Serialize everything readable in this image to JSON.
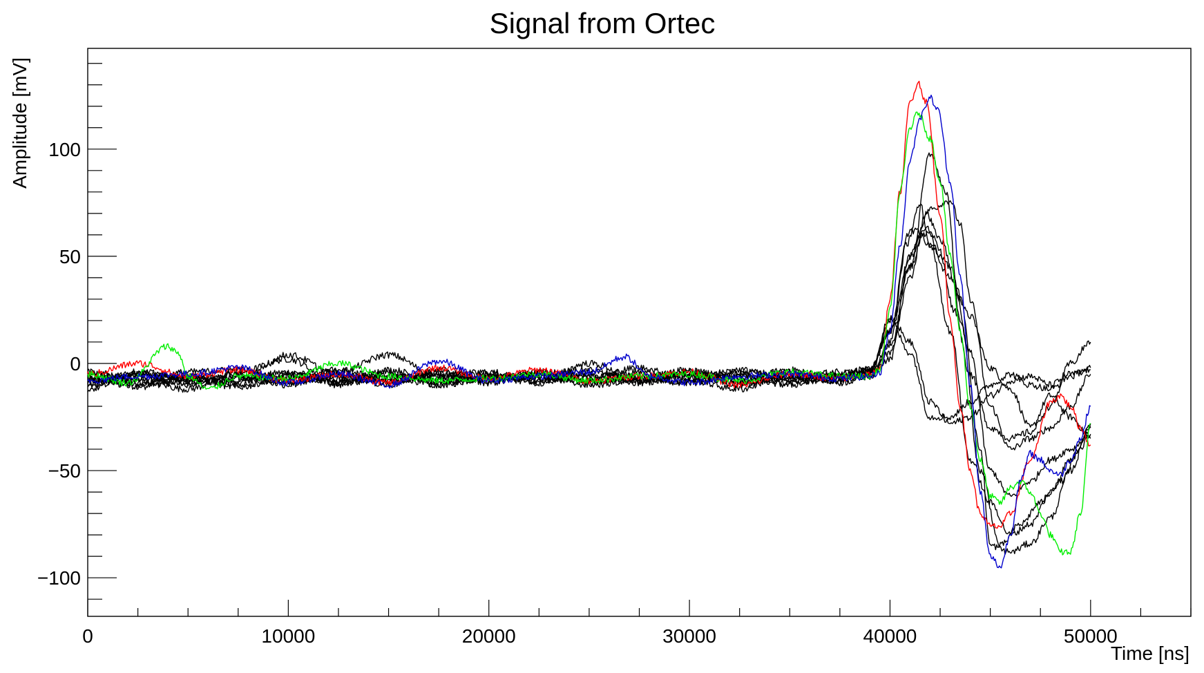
{
  "chart_data": {
    "type": "line",
    "title": "Signal from Ortec",
    "xlabel": "Time [ns]",
    "ylabel": "Amplitude [mV]",
    "xlim": [
      0,
      55000
    ],
    "ylim": [
      -118,
      147
    ],
    "x_ticks": [
      0,
      10000,
      20000,
      30000,
      40000,
      50000
    ],
    "y_ticks": [
      -100,
      -50,
      0,
      50,
      100
    ],
    "x_tick_labels": [
      "0",
      "10000",
      "20000",
      "30000",
      "40000",
      "50000"
    ],
    "y_tick_labels": [
      "−100",
      "−50",
      "0",
      "50",
      "100"
    ],
    "grid": false,
    "legend": "none",
    "colors": {
      "red": "#ff0000",
      "green": "#00ee00",
      "blue": "#0000cc",
      "black": "#000000"
    },
    "series": [
      {
        "color": "#000000",
        "x": [
          0,
          2500,
          5000,
          7500,
          10000,
          12500,
          15000,
          17500,
          20000,
          22500,
          25000,
          27500,
          30000,
          32500,
          35000,
          37500,
          39000,
          40000,
          41000,
          41500,
          42000,
          43000,
          44000,
          45000,
          46000,
          47000,
          48000,
          49000,
          50000
        ],
        "y": [
          -8,
          -10,
          -6,
          -8,
          -4,
          -9,
          -6,
          -10,
          -7,
          -5,
          -8,
          -6,
          -9,
          -5,
          -7,
          -6,
          -3,
          15,
          50,
          60,
          55,
          40,
          22,
          -2,
          -12,
          -30,
          -15,
          -25,
          -35
        ]
      },
      {
        "color": "#000000",
        "x": [
          0,
          2500,
          5000,
          7500,
          10000,
          12500,
          15000,
          17500,
          20000,
          22500,
          25000,
          27500,
          30000,
          32500,
          35000,
          37500,
          39000,
          40000,
          41000,
          42000,
          43000,
          43500,
          44000,
          45000,
          46000,
          47000,
          48000,
          49000,
          50000
        ],
        "y": [
          -5,
          -8,
          -12,
          -4,
          2,
          -10,
          -3,
          -8,
          -6,
          -9,
          -4,
          -7,
          -3,
          -10,
          -6,
          -8,
          -4,
          2,
          50,
          72,
          76,
          65,
          30,
          -20,
          -40,
          -35,
          -30,
          -20,
          -5
        ]
      },
      {
        "color": "#000000",
        "x": [
          0,
          2500,
          5000,
          7500,
          10000,
          12500,
          15000,
          17500,
          20000,
          22500,
          25000,
          27500,
          30000,
          32500,
          35000,
          37500,
          39000,
          40000,
          41000,
          42000,
          43000,
          44000,
          45000,
          46000,
          47000,
          48000,
          49000,
          50000
        ],
        "y": [
          -10,
          -5,
          -7,
          -11,
          -6,
          -4,
          4,
          -6,
          -8,
          -6,
          -3,
          -9,
          -5,
          -7,
          -10,
          -6,
          -2,
          15,
          62,
          60,
          45,
          5,
          -50,
          -62,
          -55,
          -45,
          -40,
          -33
        ]
      },
      {
        "color": "#000000",
        "x": [
          0,
          2500,
          5000,
          7500,
          10000,
          12500,
          15000,
          17500,
          20000,
          22500,
          25000,
          27500,
          30000,
          32500,
          35000,
          37500,
          39000,
          40000,
          40800,
          41500,
          42000,
          43000,
          44000,
          45000,
          46000,
          47000,
          48000,
          49000,
          50000
        ],
        "y": [
          -7,
          -9,
          -4,
          -3,
          -8,
          -6,
          -9,
          -4,
          -6,
          -8,
          0,
          -7,
          -9,
          -4,
          -5,
          -8,
          -5,
          10,
          55,
          74,
          55,
          15,
          -45,
          -65,
          -80,
          -75,
          -60,
          -45,
          -30
        ]
      },
      {
        "color": "#000000",
        "x": [
          0,
          2500,
          5000,
          7500,
          10000,
          12500,
          15000,
          17500,
          20000,
          22500,
          25000,
          27500,
          30000,
          32500,
          35000,
          37500,
          39000,
          40000,
          41000,
          41800,
          42500,
          43500,
          44500,
          45000,
          46000,
          47000,
          48000,
          49000,
          50000
        ],
        "y": [
          -12,
          -4,
          -7,
          -9,
          4,
          -5,
          -10,
          -3,
          -9,
          -4,
          -7,
          -2,
          -8,
          -12,
          -4,
          -6,
          -5,
          5,
          40,
          70,
          58,
          30,
          -40,
          -85,
          -88,
          -84,
          -72,
          -50,
          -28
        ]
      },
      {
        "color": "#000000",
        "x": [
          0,
          2500,
          5000,
          7500,
          10000,
          12500,
          15000,
          17500,
          20000,
          22500,
          25000,
          27500,
          30000,
          32500,
          35000,
          37500,
          39000,
          40000,
          41000,
          42000,
          43000,
          44000,
          45000,
          46000,
          47000,
          48000,
          49000,
          50000
        ],
        "y": [
          -6,
          -11,
          -8,
          -5,
          -9,
          -7,
          -4,
          -10,
          -5,
          -7,
          -9,
          -4,
          -6,
          -8,
          -3,
          -9,
          -6,
          22,
          10,
          -18,
          -28,
          -25,
          -15,
          -8,
          -6,
          -10,
          -5,
          -3
        ]
      },
      {
        "color": "#000000",
        "x": [
          0,
          2500,
          5000,
          7500,
          10000,
          12500,
          15000,
          17500,
          20000,
          22500,
          25000,
          27500,
          30000,
          32500,
          35000,
          37500,
          39000,
          40000,
          41000,
          42000,
          43000,
          44000,
          45000,
          46000,
          47000,
          48000,
          49000,
          50000
        ],
        "y": [
          -9,
          -6,
          -10,
          -7,
          -5,
          -9,
          -7,
          -5,
          -8,
          -6,
          -10,
          -8,
          -4,
          -6,
          -9,
          -7,
          -4,
          20,
          5,
          -25,
          -25,
          -18,
          -10,
          -5,
          -10,
          -12,
          -6,
          -2
        ]
      },
      {
        "color": "#000000",
        "x": [
          0,
          2500,
          5000,
          7500,
          10000,
          12500,
          15000,
          17500,
          20000,
          22500,
          25000,
          27500,
          30000,
          32500,
          35000,
          37500,
          39000,
          40000,
          41000,
          42000,
          42800,
          43500,
          44500,
          45500,
          46500,
          47500,
          48500,
          49500,
          50000
        ],
        "y": [
          -4,
          -7,
          -9,
          -6,
          -10,
          -3,
          -8,
          -6,
          -4,
          -9,
          -5,
          -8,
          -7,
          -3,
          -8,
          -5,
          -3,
          15,
          45,
          98,
          80,
          20,
          -50,
          -85,
          -75,
          -65,
          -55,
          -40,
          -30
        ]
      },
      {
        "color": "#000000",
        "x": [
          0,
          2500,
          5000,
          7500,
          10000,
          12500,
          15000,
          17500,
          20000,
          22500,
          25000,
          27500,
          30000,
          32500,
          35000,
          37500,
          39000,
          40000,
          41000,
          41800,
          42500,
          43200,
          44000,
          45000,
          46000,
          47000,
          48000,
          49000,
          50000
        ],
        "y": [
          -8,
          -5,
          -6,
          -10,
          -7,
          -8,
          -5,
          -9,
          -7,
          -4,
          -6,
          -9,
          -5,
          -9,
          -7,
          -4,
          -6,
          8,
          45,
          64,
          50,
          25,
          -5,
          -30,
          -35,
          -32,
          -20,
          0,
          10
        ]
      },
      {
        "color": "#ff0000",
        "x": [
          0,
          2500,
          5000,
          7500,
          10000,
          12500,
          15000,
          17500,
          20000,
          22500,
          25000,
          27500,
          30000,
          32500,
          35000,
          37500,
          39000,
          39500,
          40000,
          40500,
          41000,
          41400,
          41800,
          42500,
          43000,
          43500,
          44000,
          44500,
          45000,
          45500,
          46000,
          47000,
          48000,
          48500,
          49000,
          49500,
          50000
        ],
        "y": [
          -5,
          0,
          -6,
          -3,
          -8,
          -5,
          -9,
          -2,
          -7,
          -3,
          -8,
          -6,
          -4,
          -10,
          -5,
          -7,
          -5,
          -3,
          30,
          80,
          122,
          131,
          122,
          70,
          20,
          -20,
          -50,
          -70,
          -76,
          -76,
          -70,
          -45,
          -18,
          -15,
          -20,
          -30,
          -38
        ]
      },
      {
        "color": "#00ee00",
        "x": [
          0,
          2000,
          4000,
          4500,
          5000,
          6000,
          7500,
          10000,
          12500,
          15000,
          17500,
          20000,
          22500,
          25000,
          27500,
          30000,
          32500,
          35000,
          37500,
          39000,
          39500,
          40000,
          40500,
          41000,
          41400,
          42000,
          42500,
          43000,
          43500,
          44000,
          44500,
          45000,
          45500,
          46000,
          46500,
          47000,
          47500,
          48000,
          48500,
          49000,
          49500,
          50000
        ],
        "y": [
          -5,
          -9,
          8,
          5,
          -6,
          -12,
          -6,
          -7,
          0,
          -6,
          -8,
          -7,
          -5,
          -8,
          -6,
          -5,
          -8,
          -4,
          -6,
          -6,
          -3,
          25,
          80,
          110,
          117,
          105,
          85,
          50,
          15,
          -20,
          -45,
          -62,
          -65,
          -58,
          -55,
          -60,
          -70,
          -80,
          -88,
          -88,
          -70,
          -28
        ]
      },
      {
        "color": "#0000cc",
        "x": [
          0,
          2500,
          5000,
          7500,
          10000,
          12500,
          15000,
          17500,
          20000,
          22500,
          25000,
          26800,
          28000,
          30000,
          32500,
          35000,
          37500,
          39000,
          39500,
          40000,
          40500,
          41000,
          41500,
          42000,
          42400,
          43000,
          43500,
          44000,
          44500,
          45000,
          45500,
          46000,
          46500,
          47000,
          47500,
          48000,
          48500,
          49000,
          49500,
          50000
        ],
        "y": [
          -8,
          -6,
          -5,
          -2,
          -9,
          -5,
          -10,
          1,
          -8,
          -6,
          -4,
          3,
          -6,
          -9,
          -6,
          -5,
          -7,
          -6,
          -4,
          15,
          55,
          95,
          115,
          124,
          118,
          85,
          40,
          -10,
          -60,
          -90,
          -95,
          -80,
          -55,
          -42,
          -45,
          -50,
          -52,
          -45,
          -35,
          -20
        ]
      }
    ]
  }
}
